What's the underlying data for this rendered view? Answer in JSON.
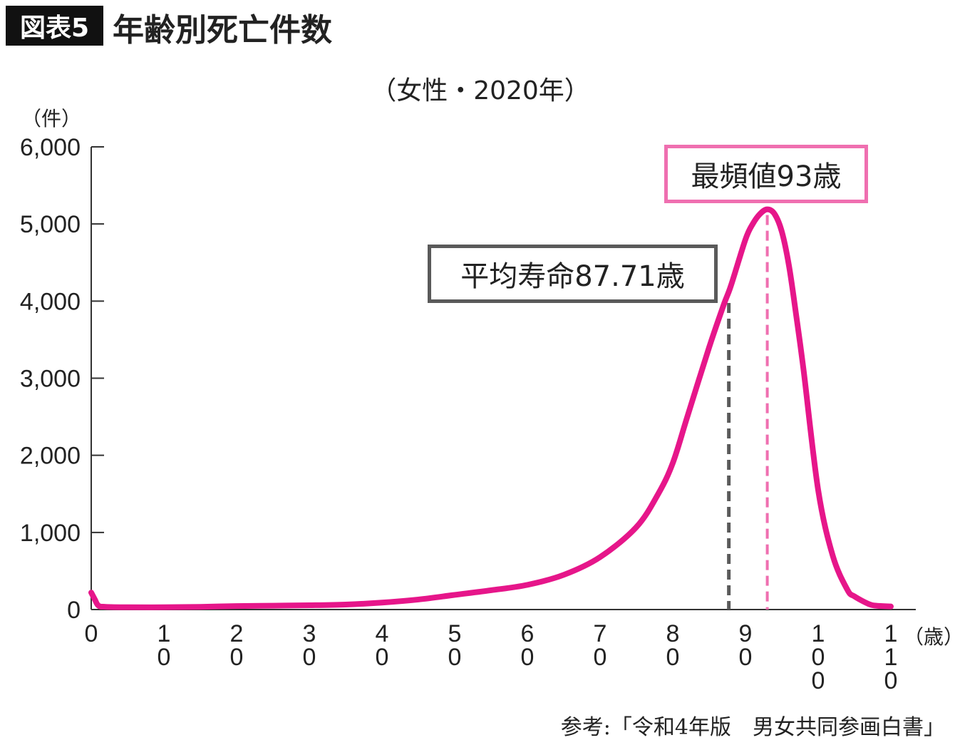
{
  "header": {
    "badge": "図表5",
    "title": "年齢別死亡件数"
  },
  "chart_data": {
    "type": "line",
    "title": "年齢別死亡件数",
    "subtitle": "（女性・2020年）",
    "ylabel": "（件）",
    "xlabel": "（歳）",
    "xlim": [
      0,
      110
    ],
    "ylim": [
      0,
      6000
    ],
    "grid": false,
    "x_ticks": [
      "0",
      "10",
      "20",
      "30",
      "40",
      "50",
      "60",
      "70",
      "80",
      "90",
      "100",
      "110"
    ],
    "y_ticks": [
      "0",
      "1,000",
      "2,000",
      "3,000",
      "4,000",
      "5,000",
      "6,000"
    ],
    "series": [
      {
        "color": "#e6168a",
        "x": [
          0,
          0.5,
          1,
          2,
          5,
          10,
          15,
          20,
          25,
          30,
          35,
          40,
          45,
          50,
          55,
          60,
          65,
          70,
          75,
          78,
          80,
          82,
          85,
          87,
          88,
          90,
          91,
          92,
          93,
          94,
          95,
          96,
          97,
          98,
          100,
          102,
          104,
          105,
          107,
          108,
          110
        ],
        "y": [
          220,
          130,
          50,
          35,
          30,
          30,
          35,
          45,
          50,
          55,
          65,
          90,
          130,
          190,
          250,
          320,
          450,
          680,
          1070,
          1500,
          1900,
          2500,
          3400,
          3950,
          4200,
          4800,
          5000,
          5130,
          5190,
          5130,
          4900,
          4450,
          3800,
          3100,
          1550,
          700,
          260,
          170,
          70,
          50,
          40
        ]
      }
    ],
    "annotations": [
      {
        "label": "最頻値93歳",
        "x": 93,
        "color": "#ef6fb0"
      },
      {
        "label": "平均寿命87.71歳",
        "x": 87.71,
        "color": "#5a5a5a"
      }
    ],
    "source": "参考:「令和4年版　男女共同参画白書」"
  }
}
